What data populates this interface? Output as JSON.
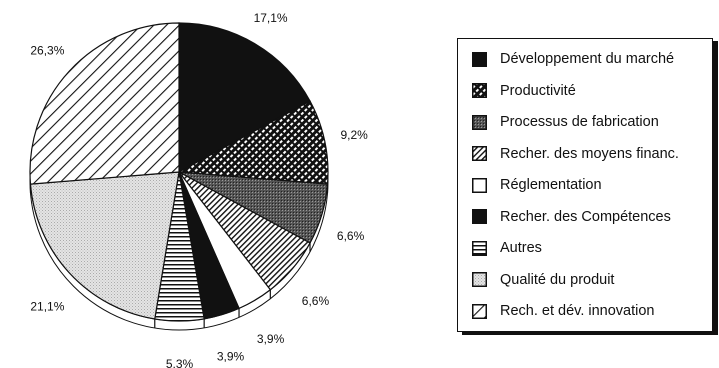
{
  "chart_data": {
    "type": "pie",
    "title": "",
    "legend_position": "right",
    "slices": [
      {
        "label": "Développement du marché",
        "value": 17.1,
        "value_label": "17,1%",
        "pattern": "solid-black"
      },
      {
        "label": "Productivité",
        "value": 9.2,
        "value_label": "9,2%",
        "pattern": "dense-crosshatch"
      },
      {
        "label": "Processus de fabrication",
        "value": 6.6,
        "value_label": "6,6%",
        "pattern": "dark-gray"
      },
      {
        "label": "Recher. des moyens  financ.",
        "value": 6.6,
        "value_label": "6,6%",
        "pattern": "diagonal-dense"
      },
      {
        "label": "Réglementation",
        "value": 3.9,
        "value_label": "3,9%",
        "pattern": "white"
      },
      {
        "label": "Recher. des  Compétences",
        "value": 3.9,
        "value_label": "3,9%",
        "pattern": "solid-black"
      },
      {
        "label": "Autres",
        "value": 5.3,
        "value_label": "5,3%",
        "pattern": "horizontal-lines"
      },
      {
        "label": "Qualité du produit",
        "value": 21.1,
        "value_label": "21,1%",
        "pattern": "light-gray-dots"
      },
      {
        "label": "Rech. et dév. innovation",
        "value": 26.3,
        "value_label": "26,3%",
        "pattern": "diagonal-sparse"
      }
    ]
  }
}
